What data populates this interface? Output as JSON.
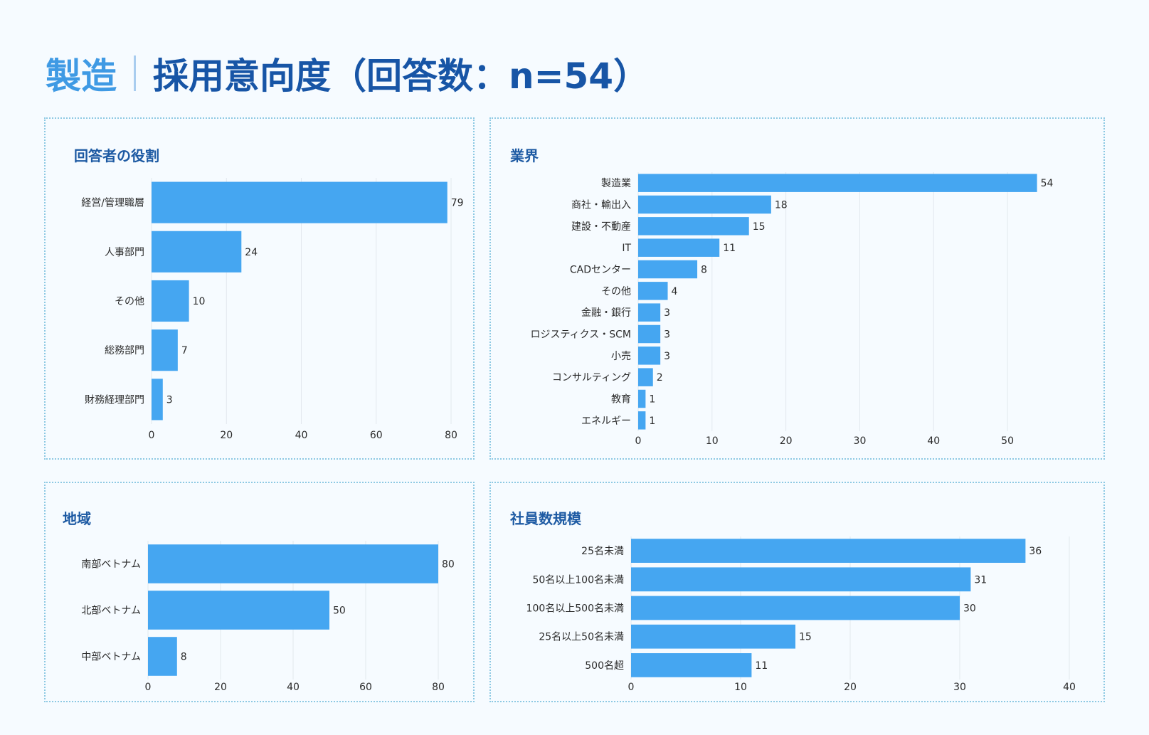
{
  "header": {
    "category": "製造",
    "title": "採用意向度（回答数：n=54）"
  },
  "colors": {
    "bar": "#45a6f1",
    "grid": "#e2e8ee",
    "text": "#2b2b2b",
    "panel_border": "#8dc9e3",
    "title": "#1d5aa3"
  },
  "chart_data": [
    {
      "id": "roles",
      "type": "bar",
      "orientation": "horizontal",
      "title": "回答者の役割",
      "categories": [
        "経営/管理職層",
        "人事部門",
        "その他",
        "総務部門",
        "財務経理部門"
      ],
      "values": [
        79,
        24,
        10,
        7,
        3
      ],
      "xticks": [
        0,
        20,
        40,
        60,
        80
      ],
      "xlim": [
        0,
        80
      ],
      "grid": true,
      "data_labels": true
    },
    {
      "id": "industry",
      "type": "bar",
      "orientation": "horizontal",
      "title": "業界",
      "categories": [
        "製造業",
        "商社・輸出入",
        "建設・不動産",
        "IT",
        "CADセンター",
        "その他",
        "金融・銀行",
        "ロジスティクス・SCM",
        "小売",
        "コンサルティング",
        "教育",
        "エネルギー"
      ],
      "values": [
        54,
        18,
        15,
        11,
        8,
        4,
        3,
        3,
        3,
        2,
        1,
        1
      ],
      "xticks": [
        0,
        10,
        20,
        30,
        40,
        50
      ],
      "xlim": [
        0,
        55
      ],
      "grid": true,
      "data_labels": true
    },
    {
      "id": "region",
      "type": "bar",
      "orientation": "horizontal",
      "title": "地域",
      "categories": [
        "南部ベトナム",
        "北部ベトナム",
        "中部ベトナム"
      ],
      "values": [
        80,
        50,
        8
      ],
      "xticks": [
        0,
        20,
        40,
        60,
        80
      ],
      "xlim": [
        0,
        80
      ],
      "grid": true,
      "data_labels": true
    },
    {
      "id": "size",
      "type": "bar",
      "orientation": "horizontal",
      "title": "社員数規模",
      "categories": [
        "25名未満",
        "50名以上100名未満",
        "100名以上500名未満",
        "25名以上50名未満",
        "500名超"
      ],
      "values": [
        36,
        31,
        30,
        15,
        11
      ],
      "xticks": [
        0,
        10,
        20,
        30,
        40
      ],
      "xlim": [
        0,
        40
      ],
      "grid": true,
      "data_labels": true
    }
  ]
}
